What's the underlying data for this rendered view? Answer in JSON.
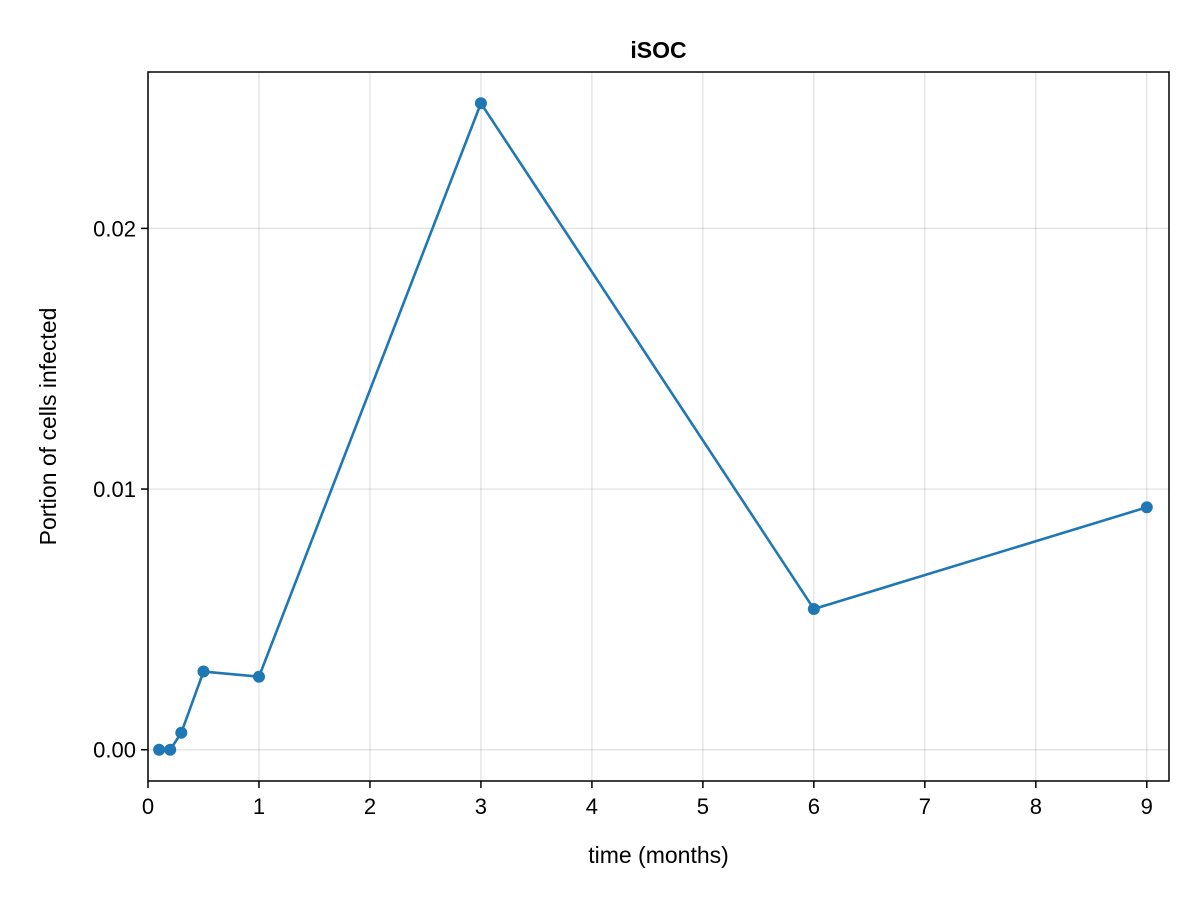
{
  "chart_data": {
    "type": "line",
    "title": "iSOC",
    "xlabel": "time (months)",
    "ylabel": "Portion of cells infected",
    "xlim": [
      0,
      9.2
    ],
    "ylim": [
      -0.0012,
      0.026
    ],
    "x_ticks": [
      0,
      1,
      2,
      3,
      4,
      5,
      6,
      7,
      8,
      9
    ],
    "x_tick_labels": [
      "0",
      "1",
      "2",
      "3",
      "4",
      "5",
      "6",
      "7",
      "8",
      "9"
    ],
    "y_ticks": [
      0.0,
      0.01,
      0.02
    ],
    "y_tick_labels": [
      "0.00",
      "0.01",
      "0.02"
    ],
    "grid": true,
    "series": [
      {
        "color": "#1f77b4",
        "markers": true,
        "x": [
          0.1,
          0.2,
          0.3,
          0.5,
          1,
          3,
          6,
          9
        ],
        "y": [
          0.0,
          0.0,
          0.00065,
          0.003,
          0.0028,
          0.0248,
          0.0054,
          0.0093
        ]
      }
    ]
  }
}
